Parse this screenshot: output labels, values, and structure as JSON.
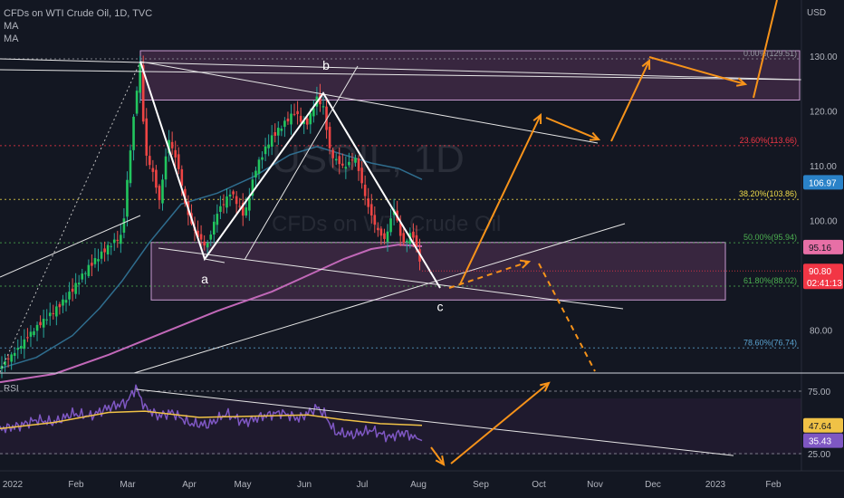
{
  "header": {
    "symbol_line": "CFDs on WTI Crude Oil, 1D, TVC",
    "indicators": [
      "MA",
      "MA"
    ]
  },
  "watermark": {
    "big": "USOIL, 1D",
    "small": "CFDs on WTI Crude Oil"
  },
  "rsi_label": "RSI",
  "chart_data": {
    "type": "candlestick",
    "title": "CFDs on WTI Crude Oil, 1D, TVC",
    "currency": "USD",
    "y_ticks": [
      80,
      90,
      100,
      110,
      120,
      130
    ],
    "ylim": [
      71.5,
      136
    ],
    "x_ticks": [
      "2022",
      "Feb",
      "Mar",
      "Apr",
      "May",
      "Jun",
      "Jul",
      "Aug",
      "Sep",
      "Oct",
      "Nov",
      "Dec",
      "2023",
      "Feb"
    ],
    "price_path": [
      [
        0,
        73.5
      ],
      [
        20,
        76
      ],
      [
        45,
        81
      ],
      [
        70,
        86
      ],
      [
        95,
        91
      ],
      [
        110,
        93
      ],
      [
        135,
        97
      ],
      [
        142,
        110
      ],
      [
        150,
        123
      ],
      [
        155,
        129.5
      ],
      [
        160,
        113
      ],
      [
        168,
        110
      ],
      [
        176,
        104
      ],
      [
        186,
        115
      ],
      [
        196,
        110
      ],
      [
        206,
        101
      ],
      [
        216,
        97
      ],
      [
        228,
        95
      ],
      [
        240,
        102
      ],
      [
        255,
        106
      ],
      [
        270,
        101
      ],
      [
        282,
        109
      ],
      [
        298,
        114
      ],
      [
        312,
        117
      ],
      [
        325,
        120
      ],
      [
        338,
        118
      ],
      [
        350,
        123
      ],
      [
        357,
        121
      ],
      [
        365,
        112
      ],
      [
        380,
        109
      ],
      [
        392,
        111
      ],
      [
        405,
        103
      ],
      [
        415,
        99
      ],
      [
        425,
        97
      ],
      [
        435,
        103
      ],
      [
        445,
        96
      ],
      [
        455,
        98
      ],
      [
        466,
        90.8
      ]
    ],
    "ma_fast": [
      [
        0,
        73
      ],
      [
        40,
        75
      ],
      [
        80,
        79
      ],
      [
        110,
        84
      ],
      [
        135,
        89
      ],
      [
        165,
        96
      ],
      [
        200,
        103
      ],
      [
        240,
        105
      ],
      [
        280,
        108
      ],
      [
        320,
        112
      ],
      [
        350,
        113.5
      ],
      [
        380,
        112
      ],
      [
        410,
        110.5
      ],
      [
        440,
        109.5
      ],
      [
        466,
        107.5
      ]
    ],
    "ma_slow": [
      [
        0,
        70.5
      ],
      [
        60,
        72
      ],
      [
        120,
        75.5
      ],
      [
        180,
        79.5
      ],
      [
        240,
        83.5
      ],
      [
        300,
        87
      ],
      [
        340,
        90
      ],
      [
        380,
        93
      ],
      [
        410,
        94.8
      ],
      [
        440,
        95.6
      ],
      [
        466,
        95.3
      ]
    ],
    "fib_levels": [
      {
        "label": "0.00%(129.51)",
        "price": 129.51,
        "color": "#9598a1"
      },
      {
        "label": "23.60%(113.66)",
        "price": 113.66,
        "color": "#f23645"
      },
      {
        "label": "38.20%(103.86)",
        "price": 103.86,
        "color": "#f0dc4a"
      },
      {
        "label": "50.00%(95.94)",
        "price": 95.94,
        "color": "#4caf50"
      },
      {
        "label": "61.80%(88.02)",
        "price": 88.02,
        "color": "#4caf50"
      },
      {
        "label": "78.60%(76.74)",
        "price": 76.74,
        "color": "#5ba3d0"
      }
    ],
    "zones": [
      {
        "top": 131,
        "bottom": 122
      },
      {
        "top": 96,
        "bottom": 85.5
      }
    ],
    "wave_labels": [
      {
        "text": "b",
        "x": 360,
        "price": 127.5
      },
      {
        "text": "a",
        "x": 226,
        "price": 88.5
      },
      {
        "text": "c",
        "x": 486,
        "price": 83.5
      }
    ],
    "price_badges": [
      {
        "value": "106.97",
        "price": 106.97,
        "bg": "#2a82c8",
        "fg": "#ffffff"
      },
      {
        "value": "95.16",
        "price": 95.16,
        "bg": "#e76fa6",
        "fg": "#131722"
      },
      {
        "value": "90.80",
        "price": 90.8,
        "bg": "#f23645",
        "fg": "#ffffff",
        "sub": "02:41:13"
      }
    ],
    "rsi": {
      "y_ticks": [
        25,
        75
      ],
      "ylim": [
        20,
        85
      ],
      "values": [
        [
          0,
          45
        ],
        [
          20,
          47
        ],
        [
          40,
          52
        ],
        [
          60,
          50
        ],
        [
          80,
          57
        ],
        [
          100,
          55
        ],
        [
          120,
          62
        ],
        [
          140,
          66
        ],
        [
          150,
          78
        ],
        [
          160,
          62
        ],
        [
          175,
          55
        ],
        [
          190,
          58
        ],
        [
          210,
          49
        ],
        [
          230,
          48
        ],
        [
          250,
          57
        ],
        [
          270,
          50
        ],
        [
          290,
          55
        ],
        [
          310,
          58
        ],
        [
          330,
          53
        ],
        [
          350,
          62
        ],
        [
          358,
          57
        ],
        [
          370,
          42
        ],
        [
          390,
          40
        ],
        [
          410,
          44
        ],
        [
          430,
          38
        ],
        [
          445,
          42
        ],
        [
          466,
          35.43
        ]
      ],
      "signal": [
        [
          0,
          45
        ],
        [
          60,
          50
        ],
        [
          120,
          58
        ],
        [
          160,
          59
        ],
        [
          220,
          54
        ],
        [
          280,
          55
        ],
        [
          340,
          56
        ],
        [
          380,
          52
        ],
        [
          420,
          49
        ],
        [
          466,
          47.64
        ]
      ],
      "badges": [
        {
          "value": "47.64",
          "y": 47.64,
          "bg": "#f0c246",
          "fg": "#131722"
        },
        {
          "value": "35.43",
          "y": 35.43,
          "bg": "#7e57c2",
          "fg": "#ffffff"
        }
      ]
    }
  }
}
